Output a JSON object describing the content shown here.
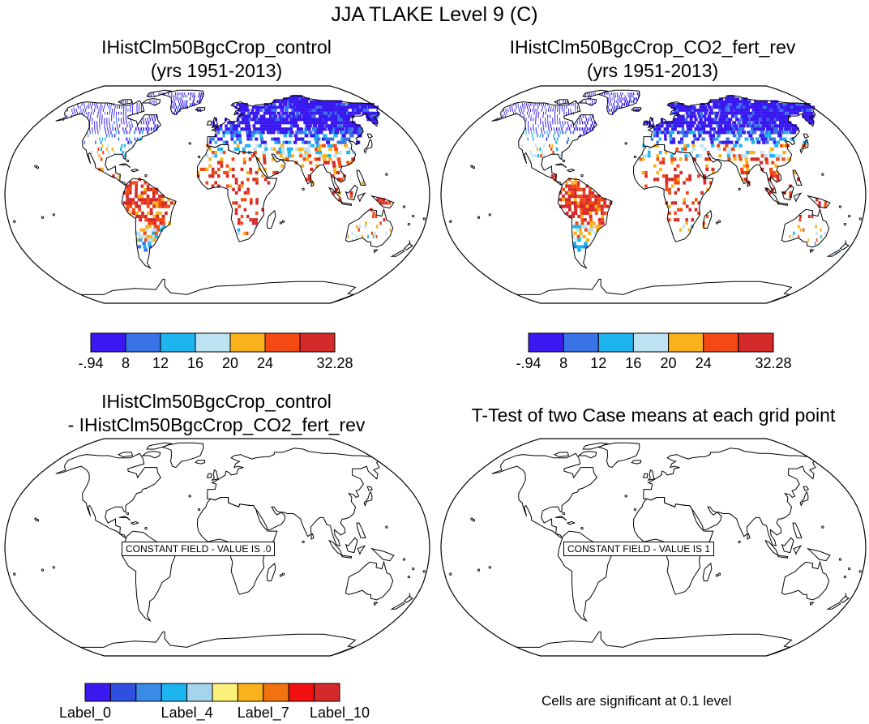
{
  "figure": {
    "title": "JJA TLAKE Level 9 (C)"
  },
  "panels": [
    {
      "id": "top-left",
      "title_line1": "IHistClm50BgcCrop_control",
      "title_line2": "(yrs 1951-2013)",
      "field": "temperature"
    },
    {
      "id": "top-right",
      "title_line1": "IHistClm50BgcCrop_CO2_fert_rev",
      "title_line2": "(yrs 1951-2013)",
      "field": "temperature"
    },
    {
      "id": "bottom-left",
      "title_line1": "IHistClm50BgcCrop_control",
      "title_line2": "- IHistClm50BgcCrop_CO2_fert_rev",
      "field": "difference",
      "constant_field_label": "CONSTANT FIELD - VALUE IS .0"
    },
    {
      "id": "bottom-right",
      "title_line1": "T-Test of two Case means at each grid point",
      "title_line2": "",
      "field": "ttest",
      "constant_field_label": "CONSTANT FIELD - VALUE IS 1"
    }
  ],
  "colorbar_temperature": {
    "colors": [
      "#3a19f0",
      "#3a72e8",
      "#1eb4f0",
      "#bde2f2",
      "#f9b21b",
      "#f24a12",
      "#d42a2a"
    ],
    "labels": [
      "-.94",
      "8",
      "12",
      "16",
      "20",
      "24",
      "32.28"
    ],
    "label_positions": [
      0,
      1,
      2,
      3,
      4,
      5,
      7
    ]
  },
  "colorbar_difference": {
    "colors": [
      "#3a19f0",
      "#2f4fe0",
      "#3a8ae8",
      "#1eb4f0",
      "#a6d4ee",
      "#fbf07a",
      "#f9b21b",
      "#f2730f",
      "#f21010",
      "#d42a2a"
    ],
    "labels": [
      "Label_0",
      "Label_4",
      "Label_7",
      "Label_10"
    ],
    "label_positions": [
      0,
      4,
      7,
      10
    ]
  },
  "significance_note": "Cells are significant at 0.1 level"
}
